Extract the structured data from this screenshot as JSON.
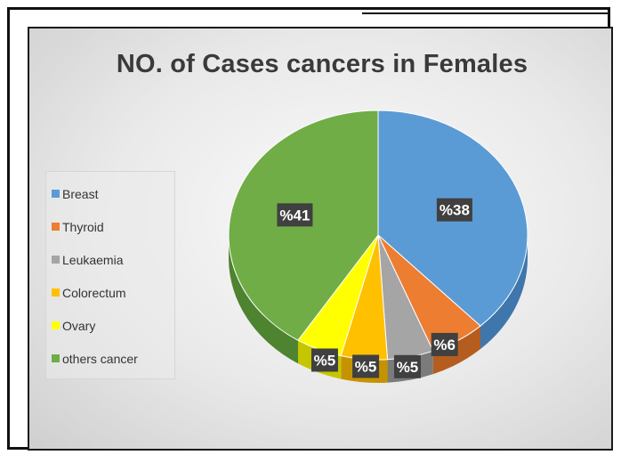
{
  "chart_data": {
    "type": "pie",
    "title": "NO. of Cases cancers in Females",
    "slices": [
      {
        "name": "Breast",
        "value": 38,
        "label": "%38",
        "color": "#5b9bd5",
        "side": "#3f76ab"
      },
      {
        "name": "Thyroid",
        "value": 6,
        "label": "%6",
        "color": "#ed7d31",
        "side": "#b55d1f"
      },
      {
        "name": "Leukaemia",
        "value": 5,
        "label": "%5",
        "color": "#a5a5a5",
        "side": "#7b7b7b"
      },
      {
        "name": "Colorectum",
        "value": 5,
        "label": "%5",
        "color": "#ffc000",
        "side": "#c69300"
      },
      {
        "name": "Ovary",
        "value": 5,
        "label": "%5",
        "color": "#ffff00",
        "side": "#c6c600"
      },
      {
        "name": "others cancer",
        "value": 41,
        "label": "%41",
        "color": "#70ad47",
        "side": "#4e8330"
      }
    ],
    "legend_position": "left"
  }
}
